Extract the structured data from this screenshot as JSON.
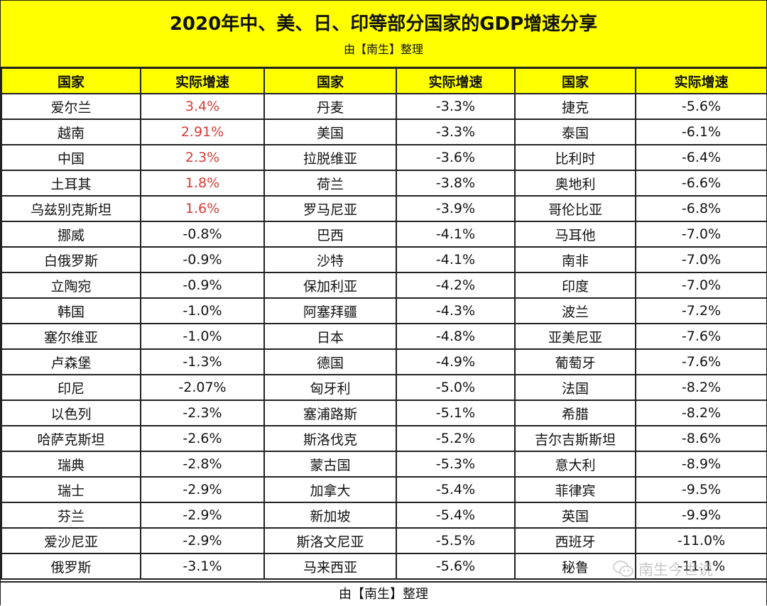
{
  "header": {
    "title": "2020年中、美、日、印等部分国家的GDP增速分享",
    "subtitle": "由【南生】整理"
  },
  "table": {
    "columns": [
      "国家",
      "实际增速",
      "国家",
      "实际增速",
      "国家",
      "实际增速"
    ],
    "rows": [
      {
        "c1": "爱尔兰",
        "v1": "3.4%",
        "c2": "丹麦",
        "v2": "-3.3%",
        "c3": "捷克",
        "v3": "-5.6%"
      },
      {
        "c1": "越南",
        "v1": "2.91%",
        "c2": "美国",
        "v2": "-3.3%",
        "c3": "泰国",
        "v3": "-6.1%"
      },
      {
        "c1": "中国",
        "v1": "2.3%",
        "c2": "拉脱维亚",
        "v2": "-3.6%",
        "c3": "比利时",
        "v3": "-6.4%"
      },
      {
        "c1": "土耳其",
        "v1": "1.8%",
        "c2": "荷兰",
        "v2": "-3.8%",
        "c3": "奥地利",
        "v3": "-6.6%"
      },
      {
        "c1": "乌兹别克斯坦",
        "v1": "1.6%",
        "c2": "罗马尼亚",
        "v2": "-3.9%",
        "c3": "哥伦比亚",
        "v3": "-6.8%"
      },
      {
        "c1": "挪威",
        "v1": "-0.8%",
        "c2": "巴西",
        "v2": "-4.1%",
        "c3": "马耳他",
        "v3": "-7.0%"
      },
      {
        "c1": "白俄罗斯",
        "v1": "-0.9%",
        "c2": "沙特",
        "v2": "-4.1%",
        "c3": "南非",
        "v3": "-7.0%"
      },
      {
        "c1": "立陶宛",
        "v1": "-0.9%",
        "c2": "保加利亚",
        "v2": "-4.2%",
        "c3": "印度",
        "v3": "-7.0%"
      },
      {
        "c1": "韩国",
        "v1": "-1.0%",
        "c2": "阿塞拜疆",
        "v2": "-4.3%",
        "c3": "波兰",
        "v3": "-7.2%"
      },
      {
        "c1": "塞尔维亚",
        "v1": "-1.0%",
        "c2": "日本",
        "v2": "-4.8%",
        "c3": "亚美尼亚",
        "v3": "-7.6%"
      },
      {
        "c1": "卢森堡",
        "v1": "-1.3%",
        "c2": "德国",
        "v2": "-4.9%",
        "c3": "葡萄牙",
        "v3": "-7.6%"
      },
      {
        "c1": "印尼",
        "v1": "-2.07%",
        "c2": "匈牙利",
        "v2": "-5.0%",
        "c3": "法国",
        "v3": "-8.2%"
      },
      {
        "c1": "以色列",
        "v1": "-2.3%",
        "c2": "塞浦路斯",
        "v2": "-5.1%",
        "c3": "希腊",
        "v3": "-8.2%"
      },
      {
        "c1": "哈萨克斯坦",
        "v1": "-2.6%",
        "c2": "斯洛伐克",
        "v2": "-5.2%",
        "c3": "吉尔吉斯斯坦",
        "v3": "-8.6%"
      },
      {
        "c1": "瑞典",
        "v1": "-2.8%",
        "c2": "蒙古国",
        "v2": "-5.3%",
        "c3": "意大利",
        "v3": "-8.9%"
      },
      {
        "c1": "瑞士",
        "v1": "-2.9%",
        "c2": "加拿大",
        "v2": "-5.4%",
        "c3": "菲律宾",
        "v3": "-9.5%"
      },
      {
        "c1": "芬兰",
        "v1": "-2.9%",
        "c2": "新加坡",
        "v2": "-5.4%",
        "c3": "英国",
        "v3": "-9.9%"
      },
      {
        "c1": "爱沙尼亚",
        "v1": "-2.9%",
        "c2": "斯洛文尼亚",
        "v2": "-5.5%",
        "c3": "西班牙",
        "v3": "-11.0%"
      },
      {
        "c1": "俄罗斯",
        "v1": "-3.1%",
        "c2": "马来西亚",
        "v2": "-5.6%",
        "c3": "秘鲁",
        "v3": "-11.1%"
      }
    ]
  },
  "footer": {
    "text": "由【南生】整理"
  },
  "watermark": {
    "icon": "wechat-icon",
    "text": "南生今世说"
  },
  "colors": {
    "header_bg": "#ffff00",
    "positive_text": "#d83a34",
    "border": "#222222"
  }
}
